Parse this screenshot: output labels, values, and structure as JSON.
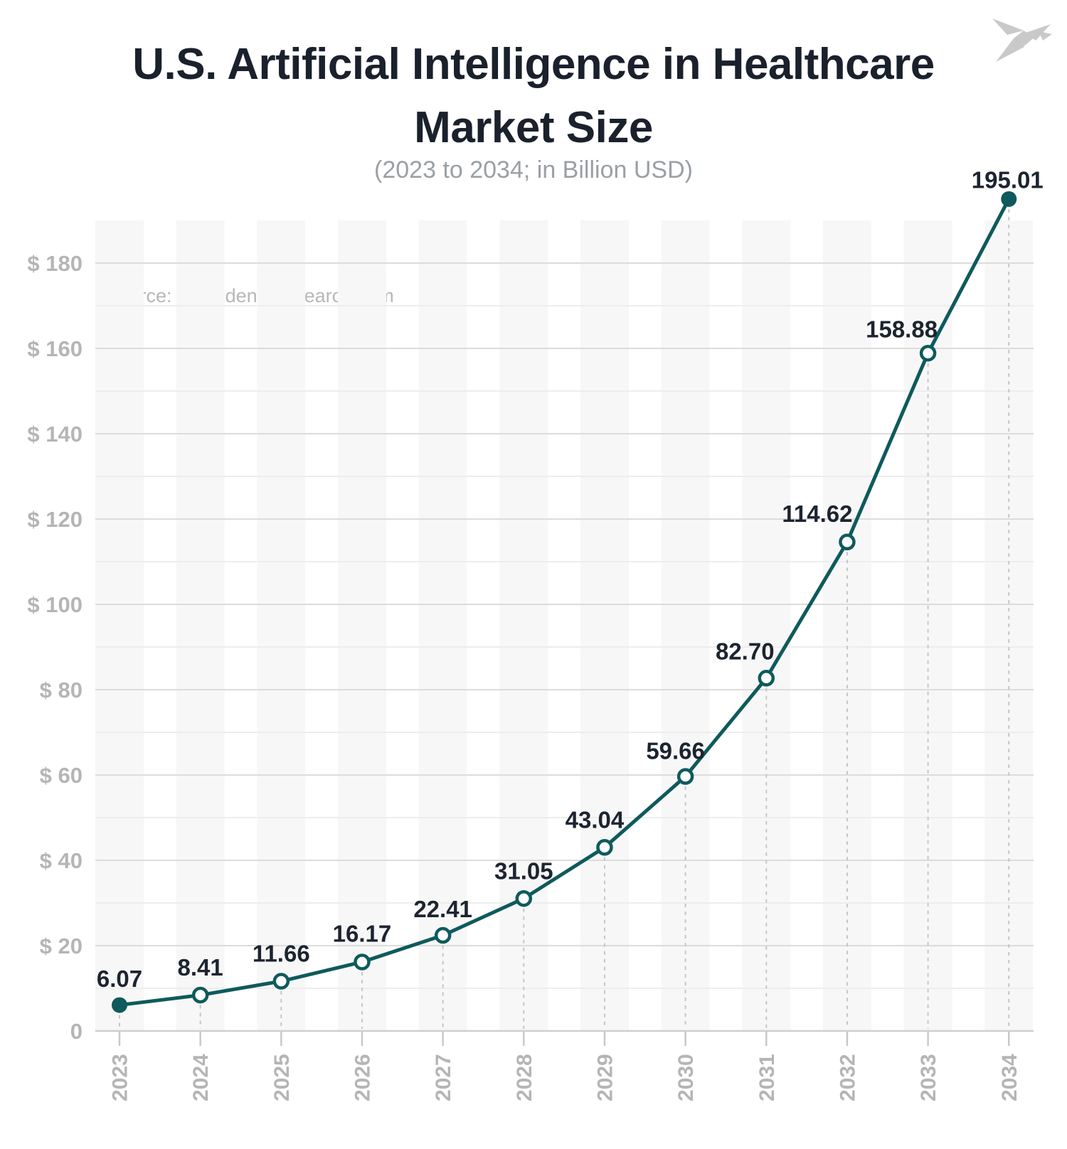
{
  "header": {
    "title_lines": [
      "U.S. Artificial Intelligence in Healthcare",
      "Market Size"
    ]
  },
  "logo": {
    "name": "origami-bird",
    "color": "#c9c9c9"
  },
  "colors": {
    "line": "#0e5a5c",
    "marker_open_fill": "#ffffff",
    "title": "#1a212d",
    "subtitle": "#9aa0a6",
    "source": "#b7b7b7",
    "axis_tick_label": "#b5b5b5",
    "value_label": "#1c2430",
    "band": "#f7f7f7",
    "grid_major": "#dcdcdc",
    "grid_minor": "#ededed",
    "axis_line": "#cfcfcf",
    "tick_mark": "#c9c9c9",
    "stem_dash": "#c6c6c6"
  },
  "chart_data": {
    "type": "line",
    "title": "U.S. Artificial Intelligence in Healthcare Market Size",
    "subtitle": "(2023 to 2034; in Billion USD)",
    "source": "source: precedenceresearch.com",
    "categories": [
      "2023",
      "2024",
      "2025",
      "2026",
      "2027",
      "2028",
      "2029",
      "2030",
      "2031",
      "2032",
      "2033",
      "2034"
    ],
    "values": [
      6.07,
      8.41,
      11.66,
      16.17,
      22.41,
      31.05,
      43.04,
      59.66,
      82.7,
      114.62,
      158.88,
      195.01
    ],
    "value_labels": [
      "6.07",
      "8.41",
      "11.66",
      "16.17",
      "22.41",
      "31.05",
      "43.04",
      "59.66",
      "82.70",
      "114.62",
      "158.88",
      "195.01"
    ],
    "xlabel": "",
    "ylabel": "",
    "ylim": [
      0,
      190
    ],
    "y_major_ticks": [
      {
        "v": 0,
        "label": "0"
      },
      {
        "v": 20,
        "label": "$ 20"
      },
      {
        "v": 40,
        "label": "$ 40"
      },
      {
        "v": 60,
        "label": "$ 60"
      },
      {
        "v": 80,
        "label": "$ 80"
      },
      {
        "v": 100,
        "label": "$ 100"
      },
      {
        "v": 120,
        "label": "$ 120"
      },
      {
        "v": 140,
        "label": "$ 140"
      },
      {
        "v": 160,
        "label": "$ 160"
      },
      {
        "v": 180,
        "label": "$ 180"
      }
    ],
    "y_minor_ticks": [
      10,
      30,
      50,
      70,
      90,
      110,
      130,
      150,
      170
    ],
    "grid": true,
    "legend": false,
    "column_bands": true,
    "marker_filled_indices": [
      0,
      11
    ],
    "label_dx": [
      0,
      0,
      0,
      0,
      0,
      0,
      -14,
      -14,
      -30,
      -42,
      -37,
      -2
    ],
    "label_dy": [
      -37,
      -39,
      -39,
      -40,
      -37,
      -39,
      -39,
      -36,
      -38,
      -40,
      -34,
      -27
    ]
  }
}
